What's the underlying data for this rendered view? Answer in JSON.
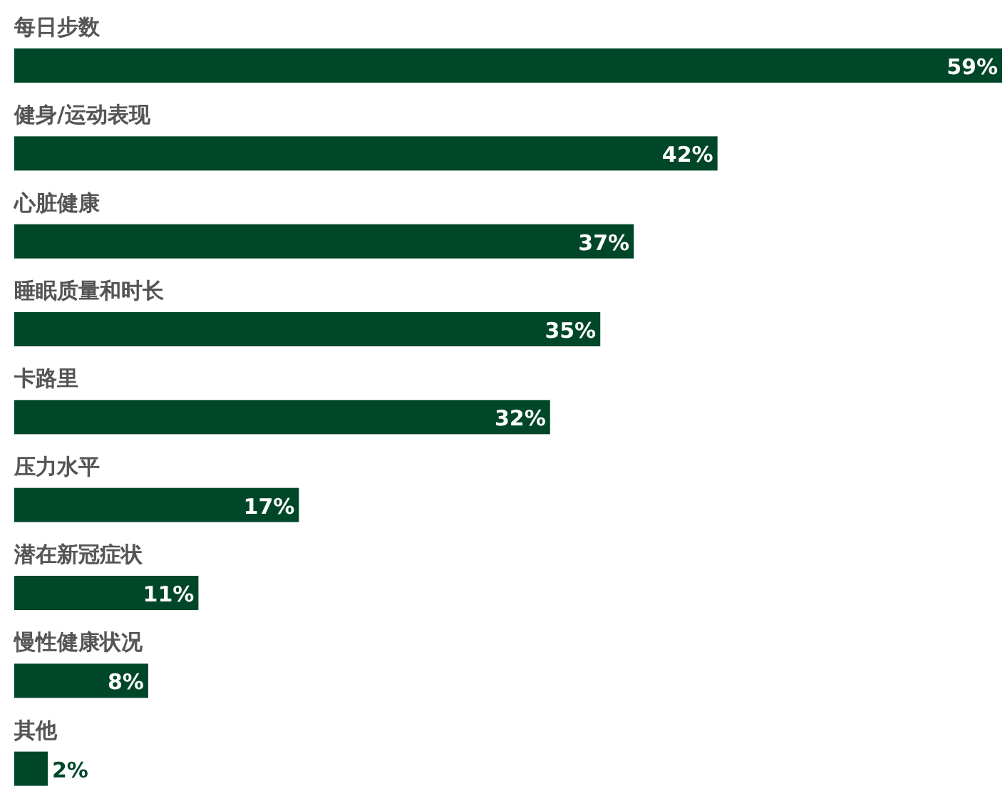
{
  "chart_data": {
    "type": "bar",
    "orientation": "horizontal",
    "color": "#00472a",
    "categories": [
      "每日步数",
      "健身/运动表现",
      "心脏健康",
      "睡眠质量和时长",
      "卡路里",
      "压力水平",
      "潜在新冠症状",
      "慢性健康状况",
      "其他"
    ],
    "values": [
      59,
      42,
      37,
      35,
      32,
      17,
      11,
      8,
      2
    ],
    "value_labels": [
      "59%",
      "42%",
      "37%",
      "35%",
      "32%",
      "17%",
      "11%",
      "8%",
      "2%"
    ]
  }
}
